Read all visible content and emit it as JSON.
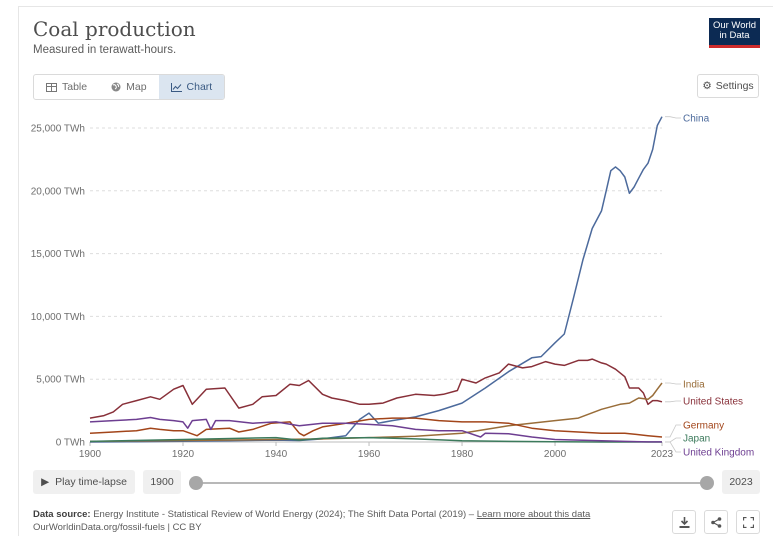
{
  "header": {
    "title": "Coal production",
    "subtitle": "Measured in terawatt-hours.",
    "logo_text": "Our World in Data",
    "logo_color": "#0c2a53",
    "logo_accent": "#ce2b2b"
  },
  "tabs": [
    {
      "label": "Table",
      "icon": "table-icon",
      "active": false
    },
    {
      "label": "Map",
      "icon": "globe-icon",
      "active": false
    },
    {
      "label": "Chart",
      "icon": "line-chart-icon",
      "active": true
    }
  ],
  "settings_label": "Settings",
  "timeline": {
    "play_label": "Play time-lapse",
    "start_year": "1900",
    "end_year": "2023"
  },
  "footer": {
    "source_label": "Data source:",
    "source_text": "Energy Institute - Statistical Review of World Energy (2024); The Shift Data Portal (2019) –",
    "learn_more": "Learn more about this data",
    "url_license": "OurWorldinData.org/fossil-fuels | CC BY"
  },
  "chart_data": {
    "type": "line",
    "title": "Coal production",
    "subtitle": "Measured in terawatt-hours.",
    "xlim": [
      1900,
      2023
    ],
    "ylim": [
      0,
      25000
    ],
    "y_ticks": [
      0,
      5000,
      10000,
      15000,
      20000,
      25000
    ],
    "y_tick_labels": [
      "0 TWh",
      "5,000 TWh",
      "10,000 TWh",
      "15,000 TWh",
      "20,000 TWh",
      "25,000 TWh"
    ],
    "x_ticks": [
      1900,
      1920,
      1940,
      1960,
      1980,
      2000,
      2023
    ],
    "x_tick_labels": [
      "1900",
      "1920",
      "1940",
      "1960",
      "1980",
      "2000",
      "2023"
    ],
    "grid": "horizontal-dashed",
    "legend": "right-end-labels",
    "series": [
      {
        "name": "China",
        "color": "#4c6a9c",
        "x": [
          1900,
          1910,
          1920,
          1930,
          1940,
          1945,
          1950,
          1955,
          1958,
          1960,
          1962,
          1965,
          1970,
          1975,
          1980,
          1985,
          1990,
          1995,
          1997,
          2000,
          2002,
          2004,
          2006,
          2008,
          2010,
          2011,
          2012,
          2013,
          2014,
          2015,
          2016,
          2017,
          2018,
          2019,
          2020,
          2021,
          2022,
          2023
        ],
        "y": [
          0,
          20,
          60,
          100,
          150,
          120,
          250,
          500,
          1800,
          2300,
          1500,
          1700,
          2000,
          2500,
          3100,
          4300,
          5600,
          6700,
          6800,
          7900,
          8600,
          11500,
          14500,
          17000,
          18400,
          20000,
          21600,
          21900,
          21600,
          21100,
          19800,
          20300,
          21000,
          21700,
          22200,
          23300,
          25200,
          25900
        ]
      },
      {
        "name": "United States",
        "color": "#883039",
        "x": [
          1900,
          1903,
          1905,
          1907,
          1910,
          1913,
          1915,
          1918,
          1920,
          1922,
          1925,
          1929,
          1932,
          1935,
          1937,
          1940,
          1943,
          1945,
          1947,
          1950,
          1952,
          1955,
          1958,
          1960,
          1963,
          1966,
          1970,
          1974,
          1976,
          1979,
          1980,
          1983,
          1985,
          1988,
          1990,
          1993,
          1995,
          1998,
          2000,
          2002,
          2005,
          2007,
          2008,
          2010,
          2011,
          2013,
          2015,
          2016,
          2018,
          2019,
          2020,
          2021,
          2022,
          2023
        ],
        "y": [
          1900,
          2100,
          2400,
          3000,
          3300,
          3600,
          3400,
          4200,
          4500,
          3000,
          4200,
          4300,
          2700,
          3000,
          3600,
          3700,
          4600,
          4500,
          4900,
          3800,
          3500,
          3300,
          3000,
          3000,
          3100,
          3500,
          3800,
          3700,
          3800,
          4100,
          5000,
          4700,
          5100,
          5500,
          6200,
          5900,
          6000,
          6400,
          6200,
          6100,
          6500,
          6500,
          6600,
          6300,
          6200,
          5800,
          5200,
          4300,
          4300,
          3900,
          3000,
          3300,
          3300,
          3200
        ]
      },
      {
        "name": "India",
        "color": "#996d39",
        "x": [
          1900,
          1920,
          1940,
          1950,
          1960,
          1970,
          1980,
          1990,
          2000,
          2005,
          2010,
          2014,
          2016,
          2018,
          2020,
          2021,
          2022,
          2023
        ],
        "y": [
          50,
          120,
          200,
          250,
          350,
          450,
          700,
          1300,
          1700,
          1900,
          2600,
          3000,
          3100,
          3500,
          3400,
          3700,
          4200,
          4700
        ]
      },
      {
        "name": "Germany",
        "color": "#a2451a",
        "x": [
          1900,
          1905,
          1910,
          1913,
          1915,
          1918,
          1920,
          1923,
          1925,
          1930,
          1932,
          1935,
          1939,
          1943,
          1945,
          1946,
          1948,
          1950,
          1955,
          1960,
          1965,
          1970,
          1975,
          1980,
          1985,
          1990,
          1995,
          2000,
          2005,
          2010,
          2015,
          2020,
          2023
        ],
        "y": [
          700,
          800,
          900,
          1100,
          1000,
          900,
          900,
          500,
          1000,
          1100,
          800,
          1000,
          1500,
          1600,
          700,
          500,
          900,
          1200,
          1500,
          1800,
          1900,
          1900,
          1700,
          1600,
          1600,
          1500,
          1100,
          900,
          800,
          700,
          700,
          500,
          400
        ]
      },
      {
        "name": "Japan",
        "color": "#3c7a5c",
        "x": [
          1900,
          1920,
          1940,
          1945,
          1950,
          1960,
          1970,
          1980,
          1990,
          2000,
          2010,
          2023
        ],
        "y": [
          50,
          200,
          350,
          150,
          300,
          350,
          250,
          100,
          50,
          20,
          0,
          0
        ]
      },
      {
        "name": "United Kingdom",
        "color": "#6d3e91",
        "x": [
          1900,
          1905,
          1910,
          1913,
          1915,
          1918,
          1920,
          1921,
          1922,
          1925,
          1926,
          1927,
          1930,
          1935,
          1940,
          1945,
          1950,
          1955,
          1960,
          1965,
          1970,
          1975,
          1980,
          1984,
          1985,
          1990,
          1995,
          2000,
          2005,
          2010,
          2015,
          2020,
          2023
        ],
        "y": [
          1600,
          1700,
          1800,
          1950,
          1800,
          1700,
          1600,
          1100,
          1700,
          1800,
          1000,
          1700,
          1700,
          1500,
          1600,
          1300,
          1500,
          1500,
          1400,
          1300,
          1000,
          900,
          900,
          400,
          700,
          650,
          400,
          200,
          150,
          100,
          50,
          10,
          10
        ]
      }
    ]
  }
}
